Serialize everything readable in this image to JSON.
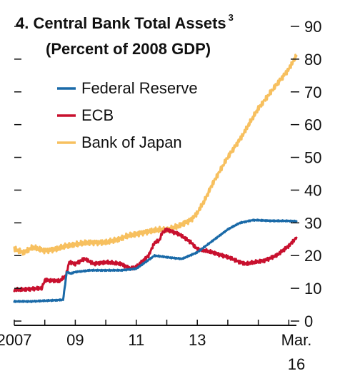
{
  "chart_data": {
    "type": "line",
    "number": "4.",
    "title": "Central Bank Total Assets",
    "title_superscript": "3",
    "subtitle": "(Percent of 2008 GDP)",
    "ylim": [
      0,
      90
    ],
    "y_ticks": [
      0,
      10,
      20,
      30,
      40,
      50,
      60,
      70,
      80,
      90
    ],
    "xlim": [
      2007.0,
      2016.25
    ],
    "x_ticks": [
      {
        "value": 2007.0,
        "label": "2007"
      },
      {
        "value": 2009.0,
        "label": "09"
      },
      {
        "value": 2011.0,
        "label": "11"
      },
      {
        "value": 2013.0,
        "label": "13"
      },
      {
        "value": 2016.17,
        "label": "Mar.",
        "label2": "16"
      }
    ],
    "legend_position": "top-left",
    "grid": false,
    "series": [
      {
        "name": "Federal Reserve",
        "color": "#1a6aa8",
        "x": [
          2007.0,
          2007.5,
          2008.0,
          2008.6,
          2008.72,
          2008.85,
          2009.0,
          2009.5,
          2010.0,
          2010.5,
          2011.0,
          2011.3,
          2011.6,
          2012.0,
          2012.5,
          2013.0,
          2013.5,
          2014.0,
          2014.4,
          2014.8,
          2015.0,
          2015.5,
          2016.0,
          2016.25
        ],
        "y": [
          6,
          6,
          6.2,
          6.5,
          15,
          14.5,
          15,
          15.5,
          15.5,
          15.5,
          16,
          18,
          20,
          19.5,
          19,
          21,
          24.5,
          28,
          30,
          30.8,
          30.8,
          30.6,
          30.6,
          30.5
        ]
      },
      {
        "name": "ECB",
        "color": "#c8102e",
        "x": [
          2007.0,
          2007.5,
          2007.9,
          2008.0,
          2008.5,
          2008.7,
          2008.8,
          2009.0,
          2009.3,
          2009.6,
          2010.0,
          2010.5,
          2010.8,
          2011.0,
          2011.4,
          2011.6,
          2011.75,
          2011.85,
          2012.0,
          2012.4,
          2012.8,
          2013.0,
          2013.5,
          2014.0,
          2014.4,
          2014.6,
          2014.9,
          2015.2,
          2015.6,
          2016.0,
          2016.25
        ],
        "y": [
          9.5,
          9.8,
          10,
          12.5,
          12.3,
          14,
          18,
          17.5,
          19,
          17.5,
          18,
          17.5,
          16,
          16.5,
          20,
          24,
          24.5,
          27,
          28,
          26.5,
          24,
          22,
          21,
          19.5,
          18,
          17.5,
          18,
          18.5,
          20,
          23,
          25.5
        ]
      },
      {
        "name": "Bank of Japan",
        "color": "#f7c05f",
        "x": [
          2007.0,
          2007.3,
          2007.6,
          2008.0,
          2008.4,
          2008.7,
          2009.0,
          2009.5,
          2010.0,
          2010.4,
          2010.7,
          2011.0,
          2011.2,
          2011.5,
          2011.8,
          2012.0,
          2012.4,
          2012.8,
          2013.0,
          2013.25,
          2013.5,
          2014.0,
          2014.5,
          2015.0,
          2015.5,
          2016.0,
          2016.25
        ],
        "y": [
          22,
          21,
          22.5,
          21.5,
          22,
          23,
          23.5,
          24,
          24,
          25,
          26,
          26.5,
          27,
          27.5,
          28,
          28,
          29,
          31,
          33,
          37,
          42,
          50,
          57,
          65,
          71,
          77,
          81
        ]
      }
    ]
  }
}
